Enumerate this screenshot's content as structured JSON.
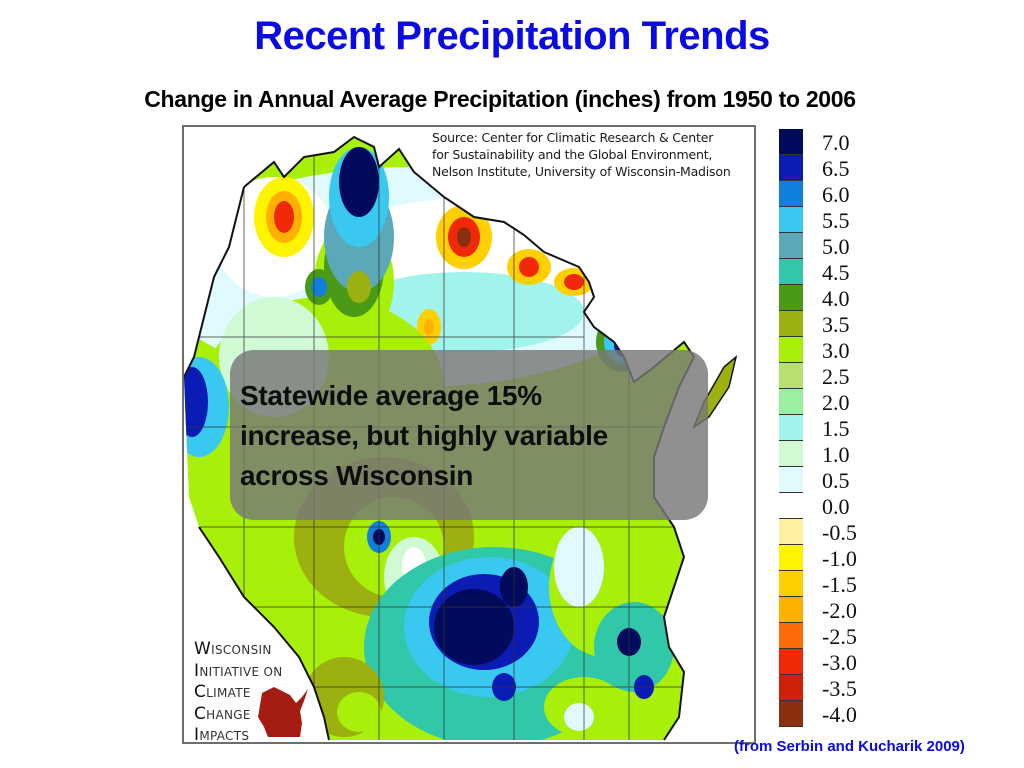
{
  "slide": {
    "title": "Recent Precipitation Trends",
    "subtitle": "Change in Annual Average Precipitation (inches) from 1950 to 2006",
    "citation": "(from Serbin and Kucharik 2009)",
    "title_color": "#0a0ae6"
  },
  "map": {
    "region": "Wisconsin",
    "source_lines": [
      "Source: Center for Climatic Research & Center",
      "for Sustainability and the Global Environment,",
      "Nelson Institute, University of Wisconsin-Madison"
    ],
    "callout_lines": [
      "Statewide average 15%",
      "increase, but highly variable",
      "across Wisconsin"
    ],
    "logo": {
      "lines": [
        {
          "cap": "W",
          "rest": "ISCONSIN"
        },
        {
          "cap": "I",
          "rest": "NITIATIVE ON"
        },
        {
          "cap": "C",
          "rest": "LIMATE"
        },
        {
          "cap": "C",
          "rest": "HANGE"
        },
        {
          "cap": "I",
          "rest": "MPACTS"
        }
      ],
      "state_color": "#a51d12"
    }
  },
  "legend": {
    "unit": "inches",
    "items": [
      {
        "label": "7.0",
        "color": "#020a5c"
      },
      {
        "label": "6.5",
        "color": "#0a1cb4"
      },
      {
        "label": "6.0",
        "color": "#1080dc"
      },
      {
        "label": "5.5",
        "color": "#38c8f0"
      },
      {
        "label": "5.0",
        "color": "#5aa8b8"
      },
      {
        "label": "4.5",
        "color": "#30c8a8"
      },
      {
        "label": "4.0",
        "color": "#4a9a18"
      },
      {
        "label": "3.5",
        "color": "#9cb010"
      },
      {
        "label": "3.0",
        "color": "#a8f00a"
      },
      {
        "label": "2.5",
        "color": "#b8e070"
      },
      {
        "label": "2.0",
        "color": "#98f0a0"
      },
      {
        "label": "1.5",
        "color": "#a0f4ec"
      },
      {
        "label": "1.0",
        "color": "#d0fad4"
      },
      {
        "label": "0.5",
        "color": "#e0faff"
      },
      {
        "label": "0.0",
        "color": "#ffffff"
      },
      {
        "label": "-0.5",
        "color": "#fff0a0"
      },
      {
        "label": "-1.0",
        "color": "#fff400"
      },
      {
        "label": "-1.5",
        "color": "#ffd000"
      },
      {
        "label": "-2.0",
        "color": "#ffb000"
      },
      {
        "label": "-2.5",
        "color": "#ff6a08"
      },
      {
        "label": "-3.0",
        "color": "#f02808"
      },
      {
        "label": "-3.5",
        "color": "#d02008"
      },
      {
        "label": "-4.0",
        "color": "#8a3010"
      }
    ]
  }
}
